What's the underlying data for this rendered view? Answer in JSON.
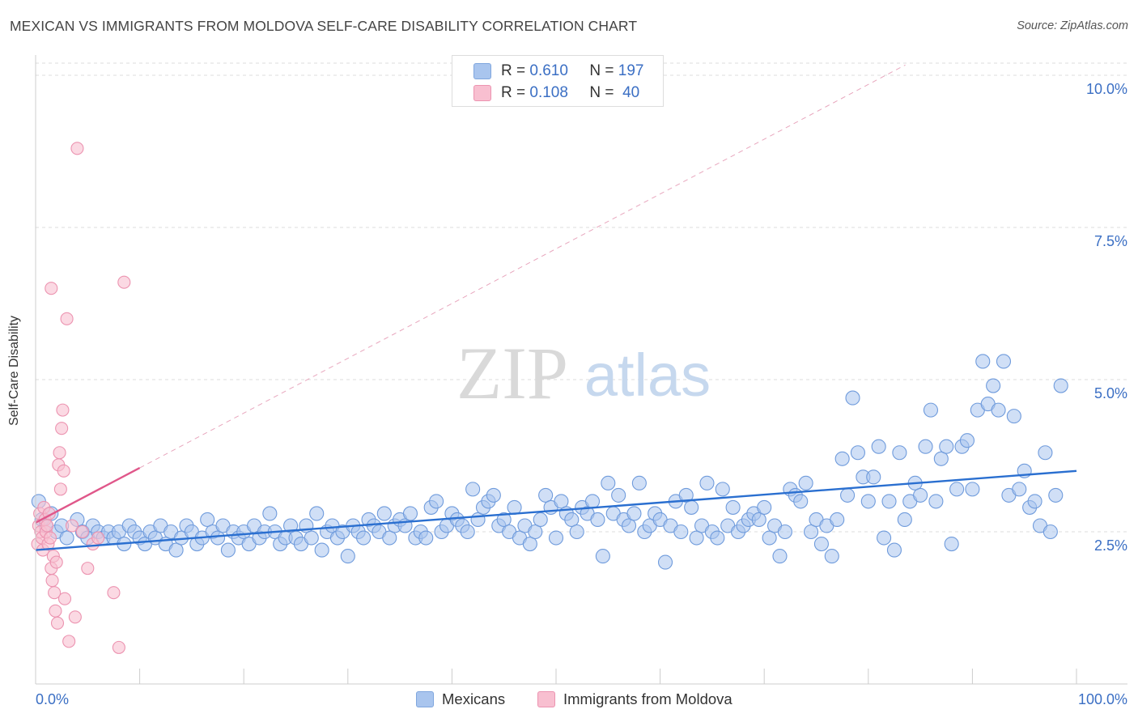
{
  "title": "MEXICAN VS IMMIGRANTS FROM MOLDOVA SELF-CARE DISABILITY CORRELATION CHART",
  "source": "Source: ZipAtlas.com",
  "watermark": {
    "zip": "ZIP",
    "atlas": "atlas"
  },
  "legend": {
    "r_label": "R =",
    "n_label": "N =",
    "items": [
      {
        "r": "0.610",
        "n": "197",
        "color": "#a9c5ee",
        "border": "#7fa6de"
      },
      {
        "r": "0.108",
        "n": "40",
        "color": "#f8bfd0",
        "border": "#ec93b0"
      }
    ]
  },
  "bottom_legend": [
    {
      "label": "Mexicans",
      "color": "#a9c5ee",
      "border": "#7fa6de"
    },
    {
      "label": "Immigrants from Moldova",
      "color": "#f8bfd0",
      "border": "#ec93b0"
    }
  ],
  "chart_data": {
    "type": "scatter",
    "title": "MEXICAN VS IMMIGRANTS FROM MOLDOVA SELF-CARE DISABILITY CORRELATION CHART",
    "xlabel": "",
    "ylabel": "Self-Care Disability",
    "xlim": [
      0,
      100
    ],
    "ylim": [
      0,
      10.2
    ],
    "x_ticks": [
      "0.0%",
      "100.0%"
    ],
    "y_ticks": [
      {
        "value": 2.5,
        "label": "2.5%"
      },
      {
        "value": 5.0,
        "label": "5.0%"
      },
      {
        "value": 7.5,
        "label": "7.5%"
      },
      {
        "value": 10.0,
        "label": "10.0%"
      }
    ],
    "grid": "horizontal-dashed",
    "legend_position": "top-center",
    "series": [
      {
        "name": "Mexicans",
        "color": "#6f9bdc",
        "fill": "#a9c5ee",
        "trend": {
          "x": [
            0,
            100
          ],
          "y": [
            2.2,
            3.5
          ],
          "color": "#2a6fd0"
        },
        "points": [
          [
            0.3,
            3.0
          ],
          [
            0.6,
            2.7
          ],
          [
            1,
            2.6
          ],
          [
            1.5,
            2.8
          ],
          [
            2,
            2.5
          ],
          [
            2.5,
            2.6
          ],
          [
            3,
            2.4
          ],
          [
            4,
            2.7
          ],
          [
            4.5,
            2.5
          ],
          [
            5,
            2.4
          ],
          [
            5.5,
            2.6
          ],
          [
            6,
            2.5
          ],
          [
            6.5,
            2.4
          ],
          [
            7,
            2.5
          ],
          [
            7.5,
            2.4
          ],
          [
            8,
            2.5
          ],
          [
            8.5,
            2.3
          ],
          [
            9,
            2.6
          ],
          [
            9.5,
            2.5
          ],
          [
            10,
            2.4
          ],
          [
            10.5,
            2.3
          ],
          [
            11,
            2.5
          ],
          [
            11.5,
            2.4
          ],
          [
            12,
            2.6
          ],
          [
            12.5,
            2.3
          ],
          [
            13,
            2.5
          ],
          [
            13.5,
            2.2
          ],
          [
            14,
            2.4
          ],
          [
            14.5,
            2.6
          ],
          [
            15,
            2.5
          ],
          [
            15.5,
            2.3
          ],
          [
            16,
            2.4
          ],
          [
            16.5,
            2.7
          ],
          [
            17,
            2.5
          ],
          [
            17.5,
            2.4
          ],
          [
            18,
            2.6
          ],
          [
            18.5,
            2.2
          ],
          [
            19,
            2.5
          ],
          [
            19.5,
            2.4
          ],
          [
            20,
            2.5
          ],
          [
            20.5,
            2.3
          ],
          [
            21,
            2.6
          ],
          [
            21.5,
            2.4
          ],
          [
            22,
            2.5
          ],
          [
            22.5,
            2.8
          ],
          [
            23,
            2.5
          ],
          [
            23.5,
            2.3
          ],
          [
            24,
            2.4
          ],
          [
            24.5,
            2.6
          ],
          [
            25,
            2.4
          ],
          [
            25.5,
            2.3
          ],
          [
            26,
            2.6
          ],
          [
            26.5,
            2.4
          ],
          [
            27,
            2.8
          ],
          [
            27.5,
            2.2
          ],
          [
            28,
            2.5
          ],
          [
            28.5,
            2.6
          ],
          [
            29,
            2.4
          ],
          [
            29.5,
            2.5
          ],
          [
            30,
            2.1
          ],
          [
            30.5,
            2.6
          ],
          [
            31,
            2.5
          ],
          [
            31.5,
            2.4
          ],
          [
            32,
            2.7
          ],
          [
            32.5,
            2.6
          ],
          [
            33,
            2.5
          ],
          [
            33.5,
            2.8
          ],
          [
            34,
            2.4
          ],
          [
            34.5,
            2.6
          ],
          [
            35,
            2.7
          ],
          [
            35.5,
            2.6
          ],
          [
            36,
            2.8
          ],
          [
            36.5,
            2.4
          ],
          [
            37,
            2.5
          ],
          [
            37.5,
            2.4
          ],
          [
            38,
            2.9
          ],
          [
            38.5,
            3.0
          ],
          [
            39,
            2.5
          ],
          [
            39.5,
            2.6
          ],
          [
            40,
            2.8
          ],
          [
            40.5,
            2.7
          ],
          [
            41,
            2.6
          ],
          [
            41.5,
            2.5
          ],
          [
            42,
            3.2
          ],
          [
            42.5,
            2.7
          ],
          [
            43,
            2.9
          ],
          [
            43.5,
            3.0
          ],
          [
            44,
            3.1
          ],
          [
            44.5,
            2.6
          ],
          [
            45,
            2.7
          ],
          [
            45.5,
            2.5
          ],
          [
            46,
            2.9
          ],
          [
            46.5,
            2.4
          ],
          [
            47,
            2.6
          ],
          [
            47.5,
            2.3
          ],
          [
            48,
            2.5
          ],
          [
            48.5,
            2.7
          ],
          [
            49,
            3.1
          ],
          [
            49.5,
            2.9
          ],
          [
            50,
            2.4
          ],
          [
            50.5,
            3.0
          ],
          [
            51,
            2.8
          ],
          [
            51.5,
            2.7
          ],
          [
            52,
            2.5
          ],
          [
            52.5,
            2.9
          ],
          [
            53,
            2.8
          ],
          [
            53.5,
            3.0
          ],
          [
            54,
            2.7
          ],
          [
            54.5,
            2.1
          ],
          [
            55,
            3.3
          ],
          [
            55.5,
            2.8
          ],
          [
            56,
            3.1
          ],
          [
            56.5,
            2.7
          ],
          [
            57,
            2.6
          ],
          [
            57.5,
            2.8
          ],
          [
            58,
            3.3
          ],
          [
            58.5,
            2.5
          ],
          [
            59,
            2.6
          ],
          [
            59.5,
            2.8
          ],
          [
            60,
            2.7
          ],
          [
            60.5,
            2.0
          ],
          [
            61,
            2.6
          ],
          [
            61.5,
            3.0
          ],
          [
            62,
            2.5
          ],
          [
            62.5,
            3.1
          ],
          [
            63,
            2.9
          ],
          [
            63.5,
            2.4
          ],
          [
            64,
            2.6
          ],
          [
            64.5,
            3.3
          ],
          [
            65,
            2.5
          ],
          [
            65.5,
            2.4
          ],
          [
            66,
            3.2
          ],
          [
            66.5,
            2.6
          ],
          [
            67,
            2.9
          ],
          [
            67.5,
            2.5
          ],
          [
            68,
            2.6
          ],
          [
            68.5,
            2.7
          ],
          [
            69,
            2.8
          ],
          [
            69.5,
            2.7
          ],
          [
            70,
            2.9
          ],
          [
            70.5,
            2.4
          ],
          [
            71,
            2.6
          ],
          [
            71.5,
            2.1
          ],
          [
            72,
            2.5
          ],
          [
            72.5,
            3.2
          ],
          [
            73,
            3.1
          ],
          [
            73.5,
            3.0
          ],
          [
            74,
            3.3
          ],
          [
            74.5,
            2.5
          ],
          [
            75,
            2.7
          ],
          [
            75.5,
            2.3
          ],
          [
            76,
            2.6
          ],
          [
            76.5,
            2.1
          ],
          [
            77,
            2.7
          ],
          [
            77.5,
            3.7
          ],
          [
            78,
            3.1
          ],
          [
            78.5,
            4.7
          ],
          [
            79,
            3.8
          ],
          [
            79.5,
            3.4
          ],
          [
            80,
            3.0
          ],
          [
            80.5,
            3.4
          ],
          [
            81,
            3.9
          ],
          [
            81.5,
            2.4
          ],
          [
            82,
            3.0
          ],
          [
            82.5,
            2.2
          ],
          [
            83,
            3.8
          ],
          [
            83.5,
            2.7
          ],
          [
            84,
            3.0
          ],
          [
            84.5,
            3.3
          ],
          [
            85,
            3.1
          ],
          [
            85.5,
            3.9
          ],
          [
            86,
            4.5
          ],
          [
            86.5,
            3.0
          ],
          [
            87,
            3.7
          ],
          [
            87.5,
            3.9
          ],
          [
            88,
            2.3
          ],
          [
            88.5,
            3.2
          ],
          [
            89,
            3.9
          ],
          [
            89.5,
            4.0
          ],
          [
            90,
            3.2
          ],
          [
            90.5,
            4.5
          ],
          [
            91,
            5.3
          ],
          [
            91.5,
            4.6
          ],
          [
            92,
            4.9
          ],
          [
            92.5,
            4.5
          ],
          [
            93,
            5.3
          ],
          [
            93.5,
            3.1
          ],
          [
            94,
            4.4
          ],
          [
            94.5,
            3.2
          ],
          [
            95,
            3.5
          ],
          [
            95.5,
            2.9
          ],
          [
            96,
            3.0
          ],
          [
            96.5,
            2.6
          ],
          [
            97,
            3.8
          ],
          [
            97.5,
            2.5
          ],
          [
            98,
            3.1
          ],
          [
            98.5,
            4.9
          ]
        ]
      },
      {
        "name": "Immigrants from Moldova",
        "color": "#ec93b0",
        "fill": "#f8bfd0",
        "trend": {
          "x": [
            0,
            10
          ],
          "y": [
            2.65,
            3.55
          ],
          "color": "#e0578a"
        },
        "points": [
          [
            0.2,
            2.3
          ],
          [
            0.3,
            2.6
          ],
          [
            0.4,
            2.8
          ],
          [
            0.5,
            2.5
          ],
          [
            0.6,
            2.4
          ],
          [
            0.7,
            2.2
          ],
          [
            0.8,
            2.9
          ],
          [
            0.9,
            2.7
          ],
          [
            1.0,
            2.5
          ],
          [
            1.1,
            2.6
          ],
          [
            1.2,
            2.3
          ],
          [
            1.3,
            2.8
          ],
          [
            1.4,
            2.4
          ],
          [
            1.5,
            1.9
          ],
          [
            1.6,
            1.7
          ],
          [
            1.7,
            2.1
          ],
          [
            1.8,
            1.5
          ],
          [
            1.9,
            1.2
          ],
          [
            2.0,
            2.0
          ],
          [
            2.1,
            1.0
          ],
          [
            2.2,
            3.6
          ],
          [
            2.3,
            3.8
          ],
          [
            2.4,
            3.2
          ],
          [
            2.5,
            4.2
          ],
          [
            2.6,
            4.5
          ],
          [
            2.7,
            3.5
          ],
          [
            2.8,
            1.4
          ],
          [
            3.0,
            6.0
          ],
          [
            3.2,
            0.7
          ],
          [
            3.5,
            2.6
          ],
          [
            3.8,
            1.1
          ],
          [
            4.0,
            8.8
          ],
          [
            4.5,
            2.5
          ],
          [
            5.0,
            1.9
          ],
          [
            5.5,
            2.3
          ],
          [
            6.0,
            2.4
          ],
          [
            7.5,
            1.5
          ],
          [
            8.0,
            0.6
          ],
          [
            8.5,
            6.6
          ],
          [
            1.5,
            6.5
          ]
        ]
      }
    ]
  }
}
